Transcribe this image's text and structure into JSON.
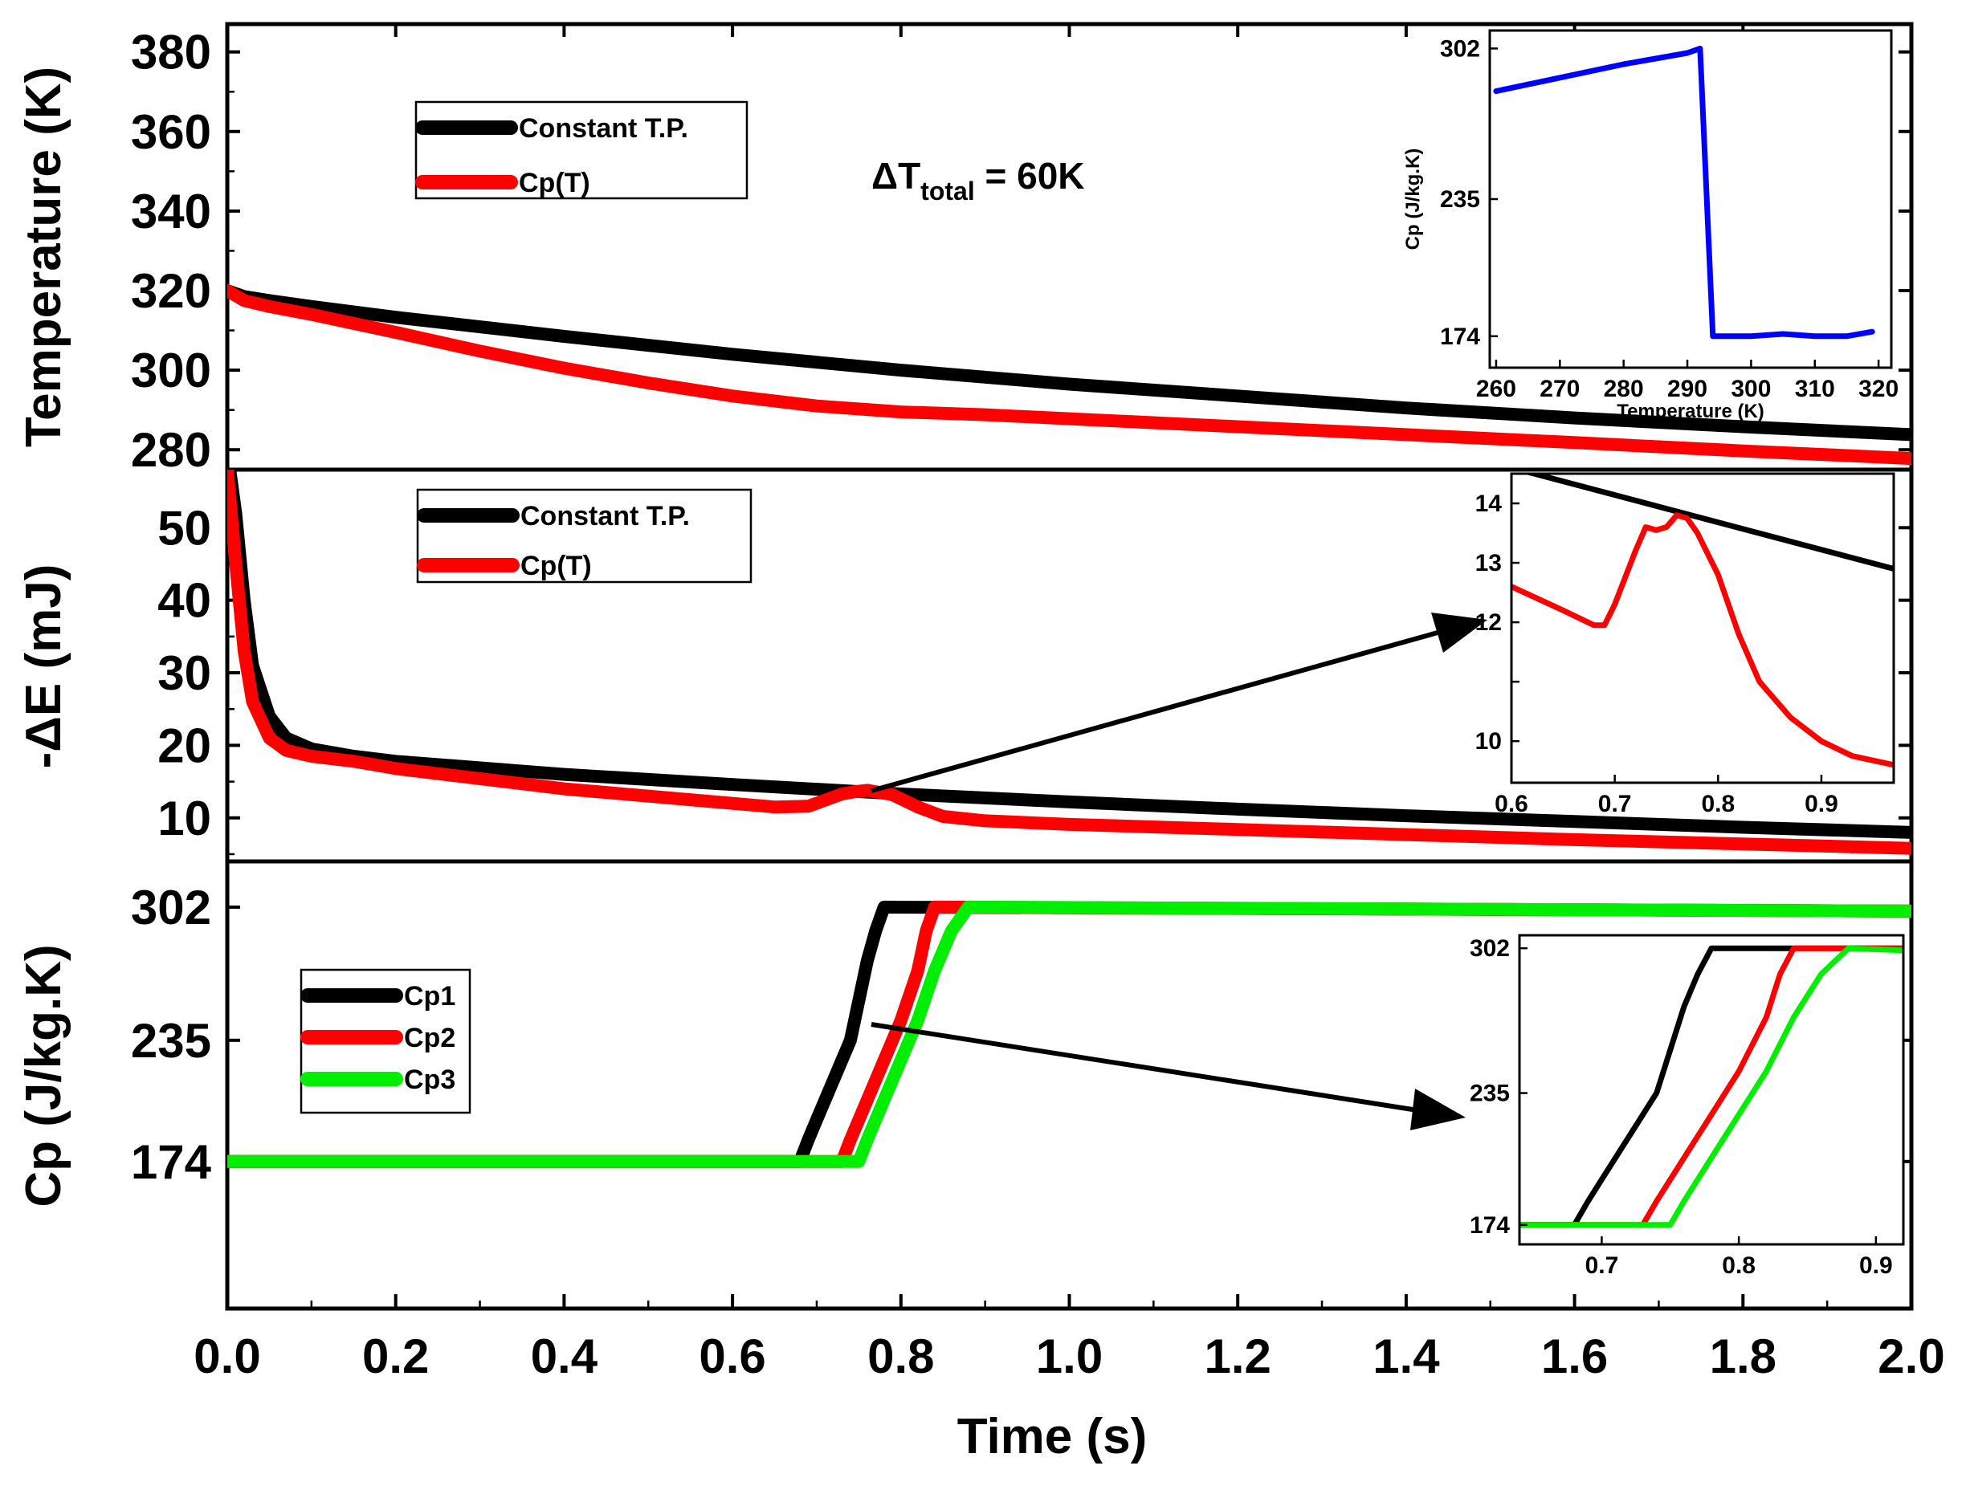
{
  "chart_data": [
    {
      "id": "temperature",
      "type": "line",
      "xlabel": "Time (s)",
      "ylabel": "Temperature (K)",
      "xlim": [
        0,
        2
      ],
      "ylim": [
        275,
        387
      ],
      "xticks": [
        "0.0",
        "0.2",
        "0.4",
        "0.6",
        "0.8",
        "1.0",
        "1.2",
        "1.4",
        "1.6",
        "1.8",
        "2.0"
      ],
      "yticks": [
        280,
        300,
        320,
        340,
        360,
        380
      ],
      "legend": [
        "Constant T.P.",
        "Cp(T)"
      ],
      "annotation": {
        "prefix": "ΔT",
        "subscript": "total",
        "suffix": " = 60K"
      },
      "series": [
        {
          "name": "Constant T.P.",
          "color": "#000000",
          "x": [
            0,
            0.02,
            0.05,
            0.1,
            0.2,
            0.4,
            0.6,
            0.8,
            1.0,
            1.2,
            1.4,
            1.6,
            1.8,
            2.0
          ],
          "y": [
            320,
            318.5,
            317.5,
            316,
            313.3,
            308.5,
            304,
            300,
            296.5,
            293.5,
            290.5,
            288,
            285.8,
            283.8
          ]
        },
        {
          "name": "Cp(T)",
          "color": "#ff0000",
          "x": [
            0,
            0.02,
            0.05,
            0.1,
            0.2,
            0.3,
            0.4,
            0.5,
            0.6,
            0.7,
            0.8,
            0.9,
            1.0,
            1.2,
            1.4,
            1.6,
            1.8,
            2.0
          ],
          "y": [
            320,
            317.5,
            316,
            314,
            309.5,
            304.8,
            300.5,
            296.8,
            293.5,
            291,
            289.5,
            288.8,
            287.8,
            285.8,
            283.8,
            281.8,
            279.7,
            277.8
          ]
        }
      ]
    },
    {
      "id": "energy",
      "type": "line",
      "ylabel": "-ΔE (mJ)",
      "xlim": [
        0,
        2
      ],
      "ylim": [
        4,
        58
      ],
      "yticks": [
        10,
        20,
        30,
        40,
        50
      ],
      "legend": [
        "Constant T.P.",
        "Cp(T)"
      ],
      "series": [
        {
          "name": "Constant T.P.",
          "color": "#000000",
          "x": [
            0.003,
            0.01,
            0.02,
            0.03,
            0.05,
            0.07,
            0.1,
            0.15,
            0.2,
            0.4,
            0.6,
            0.8,
            1.0,
            1.2,
            1.4,
            1.6,
            1.8,
            2.0
          ],
          "y": [
            58,
            52,
            40,
            31,
            24,
            21,
            19.5,
            18.5,
            17.8,
            16,
            14.6,
            13.3,
            12.2,
            11.2,
            10.3,
            9.5,
            8.7,
            8.0
          ]
        },
        {
          "name": "Cp(T)",
          "color": "#ff0000",
          "x": [
            0,
            0.01,
            0.02,
            0.03,
            0.05,
            0.07,
            0.1,
            0.15,
            0.2,
            0.4,
            0.6,
            0.65,
            0.69,
            0.73,
            0.745,
            0.76,
            0.79,
            0.82,
            0.85,
            0.9,
            1.0,
            1.2,
            1.4,
            1.6,
            1.8,
            2.0
          ],
          "y": [
            58,
            45,
            33,
            26,
            21,
            19.3,
            18.5,
            17.8,
            16.8,
            14,
            12,
            11.5,
            11.6,
            13.3,
            13.6,
            13.8,
            13.2,
            11.5,
            10.2,
            9.6,
            9.1,
            8.4,
            7.7,
            7.0,
            6.4,
            5.8
          ]
        }
      ]
    },
    {
      "id": "cp",
      "type": "line",
      "ylabel": "Cp (J/kg.K)",
      "xlim": [
        0,
        2
      ],
      "ylim": [
        100,
        325
      ],
      "yticks": [
        174,
        235,
        302
      ],
      "legend": [
        "Cp1",
        "Cp2",
        "Cp3"
      ],
      "series": [
        {
          "name": "Cp1",
          "color": "#000000",
          "x": [
            0,
            0.68,
            0.69,
            0.7,
            0.72,
            0.74,
            0.75,
            0.76,
            0.77,
            0.78,
            2.0
          ],
          "y": [
            174,
            174,
            185,
            195,
            215,
            235,
            255,
            275,
            290,
            302,
            300
          ]
        },
        {
          "name": "Cp2",
          "color": "#ff0000",
          "x": [
            0,
            0.73,
            0.74,
            0.76,
            0.78,
            0.8,
            0.82,
            0.83,
            0.84,
            2.0
          ],
          "y": [
            174,
            174,
            185,
            205,
            225,
            245,
            270,
            290,
            302,
            300
          ]
        },
        {
          "name": "Cp3",
          "color": "#00ee00",
          "x": [
            0,
            0.75,
            0.76,
            0.78,
            0.8,
            0.82,
            0.84,
            0.86,
            0.88,
            2.0
          ],
          "y": [
            174,
            174,
            185,
            205,
            225,
            245,
            270,
            290,
            302,
            300
          ]
        }
      ]
    },
    {
      "id": "inset-cp-vs-temperature",
      "type": "line",
      "xlabel": "Temperature (K)",
      "ylabel": "Cp (J/kg.K)",
      "xlim": [
        259,
        322
      ],
      "ylim": [
        160,
        310
      ],
      "xticks": [
        260,
        270,
        280,
        290,
        300,
        310,
        320
      ],
      "yticks": [
        174,
        235,
        302
      ],
      "series": [
        {
          "name": "Cp",
          "color": "#0000ff",
          "x": [
            260,
            270,
            280,
            290,
            292,
            294,
            300,
            305,
            310,
            315,
            319
          ],
          "y": [
            283,
            289,
            295,
            300,
            302,
            174,
            174,
            175,
            174,
            174,
            176
          ]
        }
      ]
    },
    {
      "id": "inset-energy-zoom",
      "type": "line",
      "xlim": [
        0.6,
        0.97
      ],
      "ylim": [
        9.3,
        14.5
      ],
      "xticks": [
        "0.6",
        "0.7",
        "0.8",
        "0.9"
      ],
      "yticks": [
        10,
        11,
        12,
        13,
        14
      ],
      "ytick_labels": [
        10,
        12,
        13,
        14
      ],
      "series": [
        {
          "name": "Constant T.P.",
          "color": "#000000",
          "x": [
            0.6,
            0.97
          ],
          "y": [
            14.6,
            12.9
          ]
        },
        {
          "name": "Cp(T)",
          "color": "#ff0000",
          "x": [
            0.6,
            0.65,
            0.68,
            0.69,
            0.7,
            0.72,
            0.73,
            0.74,
            0.75,
            0.76,
            0.77,
            0.78,
            0.8,
            0.82,
            0.84,
            0.87,
            0.9,
            0.93,
            0.97
          ],
          "y": [
            12.6,
            12.2,
            11.95,
            11.95,
            12.3,
            13.2,
            13.6,
            13.55,
            13.6,
            13.8,
            13.75,
            13.5,
            12.8,
            11.8,
            11.0,
            10.4,
            10.0,
            9.75,
            9.6
          ]
        }
      ]
    },
    {
      "id": "inset-cp-zoom",
      "type": "line",
      "xlim": [
        0.64,
        0.92
      ],
      "ylim": [
        165,
        308
      ],
      "xticks": [
        "0.7",
        "0.8",
        "0.9"
      ],
      "yticks": [
        174,
        235,
        302
      ],
      "series": [
        {
          "name": "Cp1",
          "color": "#000000",
          "x": [
            0.64,
            0.68,
            0.69,
            0.7,
            0.72,
            0.74,
            0.75,
            0.76,
            0.77,
            0.78,
            0.92
          ],
          "y": [
            174,
            174,
            185,
            195,
            215,
            235,
            255,
            275,
            290,
            302,
            302
          ]
        },
        {
          "name": "Cp2",
          "color": "#ff0000",
          "x": [
            0.64,
            0.73,
            0.74,
            0.76,
            0.78,
            0.8,
            0.82,
            0.83,
            0.84,
            0.92
          ],
          "y": [
            174,
            174,
            185,
            205,
            225,
            245,
            270,
            290,
            302,
            302
          ]
        },
        {
          "name": "Cp3",
          "color": "#00ee00",
          "x": [
            0.64,
            0.75,
            0.76,
            0.78,
            0.8,
            0.82,
            0.84,
            0.86,
            0.88,
            0.92
          ],
          "y": [
            174,
            174,
            185,
            205,
            225,
            245,
            270,
            290,
            302,
            301
          ]
        }
      ]
    }
  ]
}
